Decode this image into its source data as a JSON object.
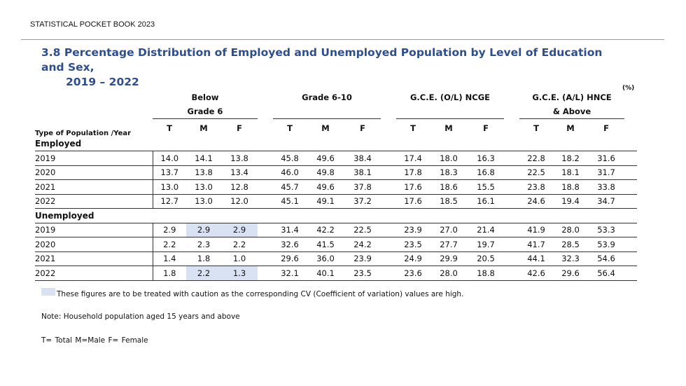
{
  "header": "STATISTICAL POCKET BOOK 2023",
  "title_line1": "3.8 Percentage Distribution of Employed and Unemployed Population by Level of Education and Sex,",
  "title_line2": "2019 – 2022",
  "unit": "(%)",
  "row_header": "Type of Population /Year",
  "groups": [
    {
      "line1": "Below",
      "line2": "Grade 6"
    },
    {
      "line1": "Grade 6-10",
      "line2": ""
    },
    {
      "line1": "G.C.E. (O/L) NCGE",
      "line2": ""
    },
    {
      "line1": "G.C.E. (A/L) HNCE",
      "line2": "& Above"
    }
  ],
  "sub_headers": [
    "T",
    "M",
    "F"
  ],
  "sections": [
    {
      "name": "Employed",
      "rows": [
        {
          "year": "2019",
          "values": [
            "14.0",
            "14.1",
            "13.8",
            "45.8",
            "49.6",
            "38.4",
            "17.4",
            "18.0",
            "16.3",
            "22.8",
            "18.2",
            "31.6"
          ]
        },
        {
          "year": "2020",
          "values": [
            "13.7",
            "13.8",
            "13.4",
            "46.0",
            "49.8",
            "38.1",
            "17.8",
            "18.3",
            "16.8",
            "22.5",
            "18.1",
            "31.7"
          ]
        },
        {
          "year": "2021",
          "values": [
            "13.0",
            "13.0",
            "12.8",
            "45.7",
            "49.6",
            "37.8",
            "17.6",
            "18.6",
            "15.5",
            "23.8",
            "18.8",
            "33.8"
          ]
        },
        {
          "year": "2022",
          "values": [
            "12.7",
            "13.0",
            "12.0",
            "45.1",
            "49.1",
            "37.2",
            "17.6",
            "18.5",
            "16.1",
            "24.6",
            "19.4",
            "34.7"
          ]
        }
      ]
    },
    {
      "name": "Unemployed",
      "rows": [
        {
          "year": "2019",
          "values": [
            "2.9",
            "2.9",
            "2.9",
            "31.4",
            "42.2",
            "22.5",
            "23.9",
            "27.0",
            "21.4",
            "41.9",
            "28.0",
            "53.3"
          ]
        },
        {
          "year": "2020",
          "values": [
            "2.2",
            "2.3",
            "2.2",
            "32.6",
            "41.5",
            "24.2",
            "23.5",
            "27.7",
            "19.7",
            "41.7",
            "28.5",
            "53.9"
          ]
        },
        {
          "year": "2021",
          "values": [
            "1.4",
            "1.8",
            "1.0",
            "29.6",
            "36.0",
            "23.9",
            "24.9",
            "29.9",
            "20.5",
            "44.1",
            "32.3",
            "54.6"
          ]
        },
        {
          "year": "2022",
          "values": [
            "1.8",
            "2.2",
            "1.3",
            "32.1",
            "40.1",
            "23.5",
            "23.6",
            "28.0",
            "18.8",
            "42.6",
            "29.6",
            "56.4"
          ]
        }
      ]
    }
  ],
  "highlight_color": "#d9e2f3",
  "title_color": "#2e4e8e",
  "legend_text": "These figures are to be treated with caution as the corresponding CV (Coefficient of variation) values are high.",
  "note": "Note: Household population aged 15 years and above",
  "abbreviations": "T= Total   M=Male   F= Female"
}
